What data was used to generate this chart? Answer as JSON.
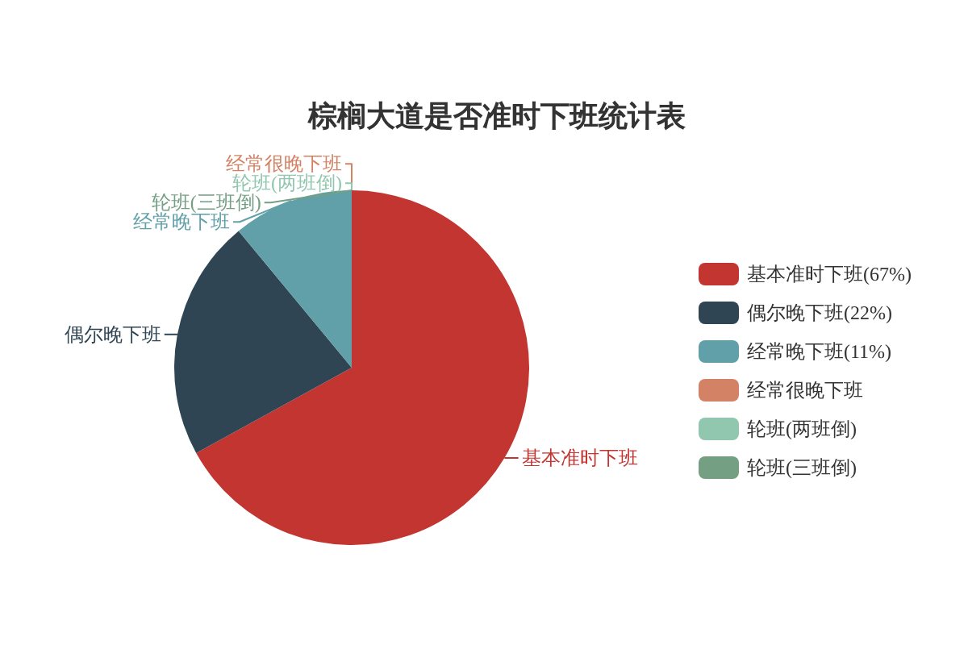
{
  "chart_data": {
    "type": "pie",
    "title": "棕榈大道是否准时下班统计表",
    "categories": [
      "基本准时下班",
      "偶尔晚下班",
      "经常晚下班",
      "经常很晚下班",
      "轮班(两班倒)",
      "轮班(三班倒)"
    ],
    "values": [
      67,
      22,
      11,
      0,
      0,
      0
    ],
    "value_labels": [
      "(67%)",
      "(22%)",
      "(11%)",
      null,
      null,
      null
    ],
    "colors": [
      "#c23531",
      "#2f4554",
      "#61a0a8",
      "#d48265",
      "#91c7ae",
      "#749f83"
    ],
    "legend": "right"
  }
}
